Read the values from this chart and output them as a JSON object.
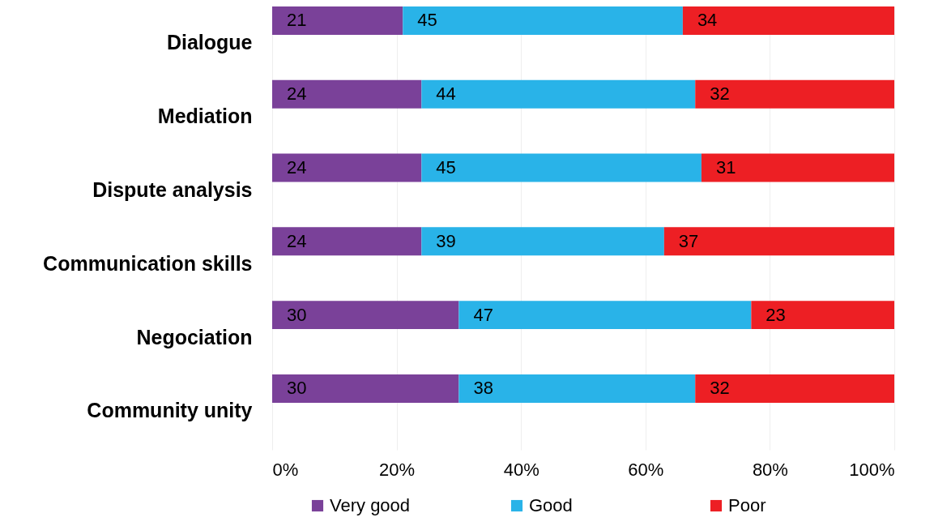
{
  "chart_data": {
    "type": "bar",
    "orientation": "horizontal",
    "stacked": true,
    "categories": [
      "Dialogue",
      "Mediation",
      "Dispute analysis",
      "Communication skills",
      "Negociation",
      "Community unity"
    ],
    "series": [
      {
        "name": "Very good",
        "color": "#7a4199",
        "values": [
          21,
          24,
          24,
          24,
          30,
          30
        ]
      },
      {
        "name": "Good",
        "color": "#29b3e8",
        "values": [
          45,
          44,
          45,
          39,
          47,
          38
        ]
      },
      {
        "name": "Poor",
        "color": "#ed1f24",
        "values": [
          34,
          32,
          31,
          37,
          23,
          32
        ]
      }
    ],
    "xlim": [
      0,
      100
    ],
    "xticks": [
      {
        "value": 0,
        "label": "0%"
      },
      {
        "value": 20,
        "label": "20%"
      },
      {
        "value": 40,
        "label": "40%"
      },
      {
        "value": 60,
        "label": "60%"
      },
      {
        "value": 80,
        "label": "80%"
      },
      {
        "value": 100,
        "label": "100%"
      }
    ],
    "data_labels": true,
    "legend": "bottom",
    "grid": "x"
  }
}
